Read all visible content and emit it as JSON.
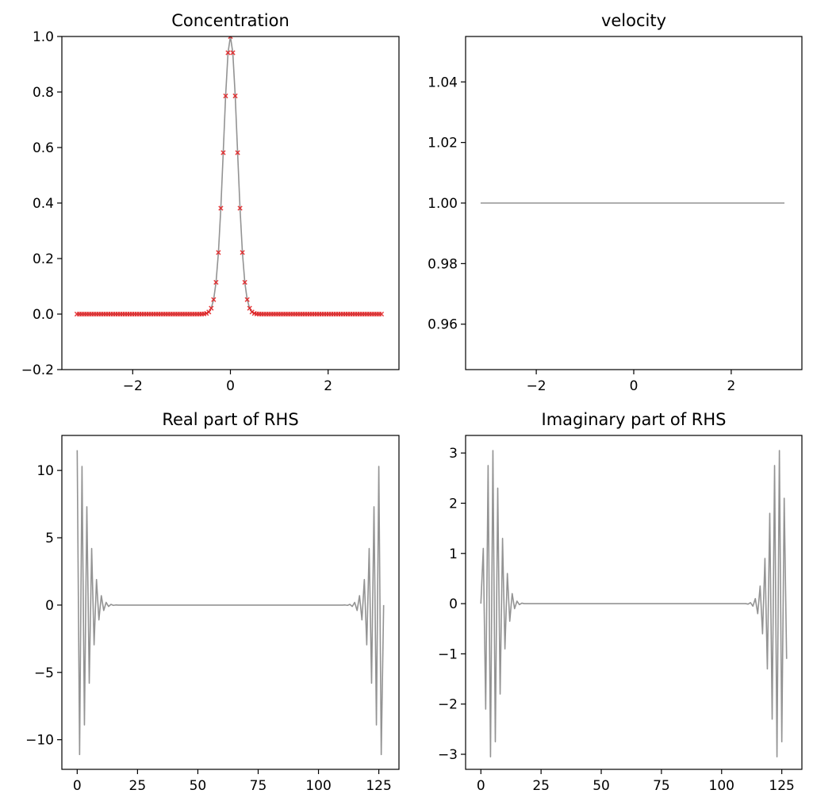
{
  "chart_data": [
    {
      "type": "line",
      "title": "Concentration",
      "xlabel": "",
      "ylabel": "",
      "xlim": [
        -3.45,
        3.45
      ],
      "ylim": [
        -0.2,
        1.0
      ],
      "xticks": [
        -2,
        0,
        2
      ],
      "xtick_labels": [
        "−2",
        "0",
        "2"
      ],
      "yticks": [
        -0.2,
        0.0,
        0.2,
        0.4,
        0.6,
        0.8,
        1.0
      ],
      "ytick_labels": [
        "−0.2",
        "0.0",
        "0.2",
        "0.4",
        "0.6",
        "0.8",
        "1.0"
      ],
      "grid": false,
      "series": [
        {
          "kind": "line",
          "color": "#939393",
          "generator": "gaussian",
          "params": {
            "amplitude": 1.0,
            "center": 0.0,
            "sigma": 0.2,
            "x_start": -3.1416,
            "x_end": 3.0925,
            "n_points": 128
          }
        },
        {
          "kind": "markers",
          "marker": "x",
          "color": "#e31a1c",
          "generator": "gaussian",
          "params": {
            "amplitude": 1.0,
            "center": 0.0,
            "sigma": 0.2,
            "x_start": -3.1416,
            "x_end": 3.0925,
            "n_points": 128
          }
        }
      ]
    },
    {
      "type": "line",
      "title": "velocity",
      "xlabel": "",
      "ylabel": "",
      "xlim": [
        -3.45,
        3.45
      ],
      "ylim": [
        0.945,
        1.055
      ],
      "xticks": [
        -2,
        0,
        2
      ],
      "xtick_labels": [
        "−2",
        "0",
        "2"
      ],
      "yticks": [
        0.96,
        0.98,
        1.0,
        1.02,
        1.04
      ],
      "ytick_labels": [
        "0.96",
        "0.98",
        "1.00",
        "1.02",
        "1.04"
      ],
      "grid": false,
      "series": [
        {
          "kind": "line",
          "color": "#939393",
          "x": [
            -3.1416,
            3.0925
          ],
          "y": [
            1.0,
            1.0
          ]
        }
      ]
    },
    {
      "type": "line",
      "title": "Real part of RHS",
      "xlabel": "",
      "ylabel": "",
      "xlim": [
        -6.35,
        133.35
      ],
      "ylim": [
        -12.2,
        12.6
      ],
      "xticks": [
        0,
        25,
        50,
        75,
        100,
        125
      ],
      "xtick_labels": [
        "0",
        "25",
        "50",
        "75",
        "100",
        "125"
      ],
      "yticks": [
        -10,
        -5,
        0,
        5,
        10
      ],
      "ytick_labels": [
        "−10",
        "−5",
        "0",
        "5",
        "10"
      ],
      "grid": false,
      "series": [
        {
          "kind": "line",
          "color": "#939393",
          "x_start": 0,
          "y": [
            11.5,
            -11.1,
            10.3,
            -8.9,
            7.3,
            -5.8,
            4.2,
            -2.95,
            1.9,
            -1.1,
            0.7,
            -0.4,
            0.2,
            -0.1,
            0.05,
            -0.02,
            0.01,
            0,
            0,
            0,
            0,
            0,
            0,
            0,
            0,
            0,
            0,
            0,
            0,
            0,
            0,
            0,
            0,
            0,
            0,
            0,
            0,
            0,
            0,
            0,
            0,
            0,
            0,
            0,
            0,
            0,
            0,
            0,
            0,
            0,
            0,
            0,
            0,
            0,
            0,
            0,
            0,
            0,
            0,
            0,
            0,
            0,
            0,
            0,
            0,
            0,
            0,
            0,
            0,
            0,
            0,
            0,
            0,
            0,
            0,
            0,
            0,
            0,
            0,
            0,
            0,
            0,
            0,
            0,
            0,
            0,
            0,
            0,
            0,
            0,
            0,
            0,
            0,
            0,
            0,
            0,
            0,
            0,
            0,
            0,
            0,
            0,
            0,
            0,
            0,
            0,
            0,
            0,
            0,
            0,
            0,
            0.01,
            -0.02,
            0.05,
            -0.1,
            0.2,
            -0.4,
            0.7,
            -1.1,
            1.9,
            -2.95,
            4.2,
            -5.8,
            7.3,
            -8.9,
            10.3,
            -11.1,
            0.0
          ]
        }
      ]
    },
    {
      "type": "line",
      "title": "Imaginary part of RHS",
      "xlabel": "",
      "ylabel": "",
      "xlim": [
        -6.35,
        133.35
      ],
      "ylim": [
        -3.3,
        3.35
      ],
      "xticks": [
        0,
        25,
        50,
        75,
        100,
        125
      ],
      "xtick_labels": [
        "0",
        "25",
        "50",
        "75",
        "100",
        "125"
      ],
      "yticks": [
        -3,
        -2,
        -1,
        0,
        1,
        2,
        3
      ],
      "ytick_labels": [
        "−3",
        "−2",
        "−1",
        "0",
        "1",
        "2",
        "3"
      ],
      "grid": false,
      "series": [
        {
          "kind": "line",
          "color": "#939393",
          "x_start": 0,
          "y": [
            0.0,
            1.1,
            -2.1,
            2.75,
            -3.05,
            3.05,
            -2.75,
            2.3,
            -1.8,
            1.3,
            -0.9,
            0.6,
            -0.35,
            0.2,
            -0.1,
            0.05,
            -0.02,
            0.01,
            0,
            0,
            0,
            0,
            0,
            0,
            0,
            0,
            0,
            0,
            0,
            0,
            0,
            0,
            0,
            0,
            0,
            0,
            0,
            0,
            0,
            0,
            0,
            0,
            0,
            0,
            0,
            0,
            0,
            0,
            0,
            0,
            0,
            0,
            0,
            0,
            0,
            0,
            0,
            0,
            0,
            0,
            0,
            0,
            0,
            0,
            0,
            0,
            0,
            0,
            0,
            0,
            0,
            0,
            0,
            0,
            0,
            0,
            0,
            0,
            0,
            0,
            0,
            0,
            0,
            0,
            0,
            0,
            0,
            0,
            0,
            0,
            0,
            0,
            0,
            0,
            0,
            0,
            0,
            0,
            0,
            0,
            0,
            0,
            0,
            0,
            0,
            0,
            0,
            0,
            0,
            0,
            0,
            -0.01,
            0.02,
            -0.05,
            0.1,
            -0.2,
            0.35,
            -0.6,
            0.9,
            -1.3,
            1.8,
            -2.3,
            2.75,
            -3.05,
            3.05,
            -2.75,
            2.1,
            -1.1
          ]
        }
      ]
    }
  ]
}
